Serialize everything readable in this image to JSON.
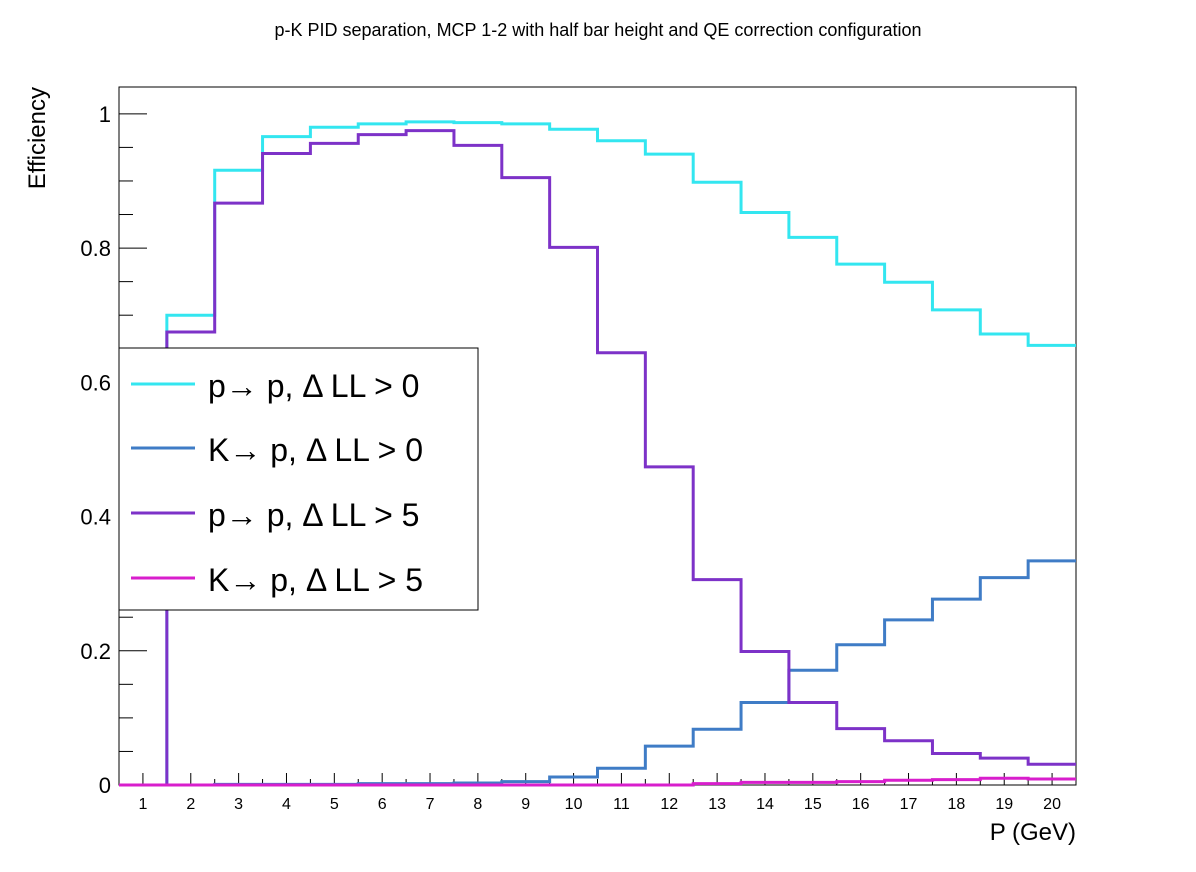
{
  "chart_data": {
    "type": "line",
    "title": "p-K PID separation, MCP 1-2 with half bar height and QE correction configuration",
    "xlabel": "P (GeV)",
    "ylabel": "Efficiency",
    "xlim": [
      0.5,
      20.5
    ],
    "ylim": [
      0,
      1.04
    ],
    "step": true,
    "categories": [
      "1",
      "2",
      "3",
      "4",
      "5",
      "6",
      "7",
      "8",
      "9",
      "10",
      "11",
      "12",
      "13",
      "14",
      "15",
      "16",
      "17",
      "18",
      "19",
      "20"
    ],
    "y_ticks": [
      "0",
      "0.2",
      "0.4",
      "0.6",
      "0.8",
      "1"
    ],
    "y_tick_values": [
      0,
      0.2,
      0.4,
      0.6,
      0.8,
      1.0
    ],
    "legend_position": "middle-left",
    "grid": false,
    "series": [
      {
        "name": "p→ p, Δ LL > 0",
        "color": "#33e6f0",
        "values": [
          0,
          0.7,
          0.916,
          0.966,
          0.98,
          0.985,
          0.988,
          0.987,
          0.985,
          0.977,
          0.96,
          0.94,
          0.898,
          0.853,
          0.816,
          0.776,
          0.749,
          0.708,
          0.672,
          0.655
        ]
      },
      {
        "name": "K→ p, Δ LL > 0",
        "color": "#3f7cc6",
        "values": [
          0,
          0,
          0.001,
          0.001,
          0.001,
          0.002,
          0.002,
          0.003,
          0.005,
          0.012,
          0.025,
          0.058,
          0.083,
          0.123,
          0.171,
          0.209,
          0.246,
          0.277,
          0.309,
          0.334
        ]
      },
      {
        "name": "p→ p, Δ LL > 5",
        "color": "#7d32c8",
        "values": [
          0,
          0.675,
          0.867,
          0.941,
          0.956,
          0.969,
          0.975,
          0.953,
          0.905,
          0.801,
          0.644,
          0.474,
          0.306,
          0.199,
          0.123,
          0.084,
          0.066,
          0.047,
          0.04,
          0.031
        ]
      },
      {
        "name": "K→ p, Δ LL > 5",
        "color": "#d81ecc",
        "values": [
          0,
          0,
          0,
          0,
          0,
          0,
          0,
          0,
          0,
          0,
          0,
          0,
          0.002,
          0.004,
          0.004,
          0.005,
          0.007,
          0.008,
          0.01,
          0.009
        ]
      }
    ]
  }
}
